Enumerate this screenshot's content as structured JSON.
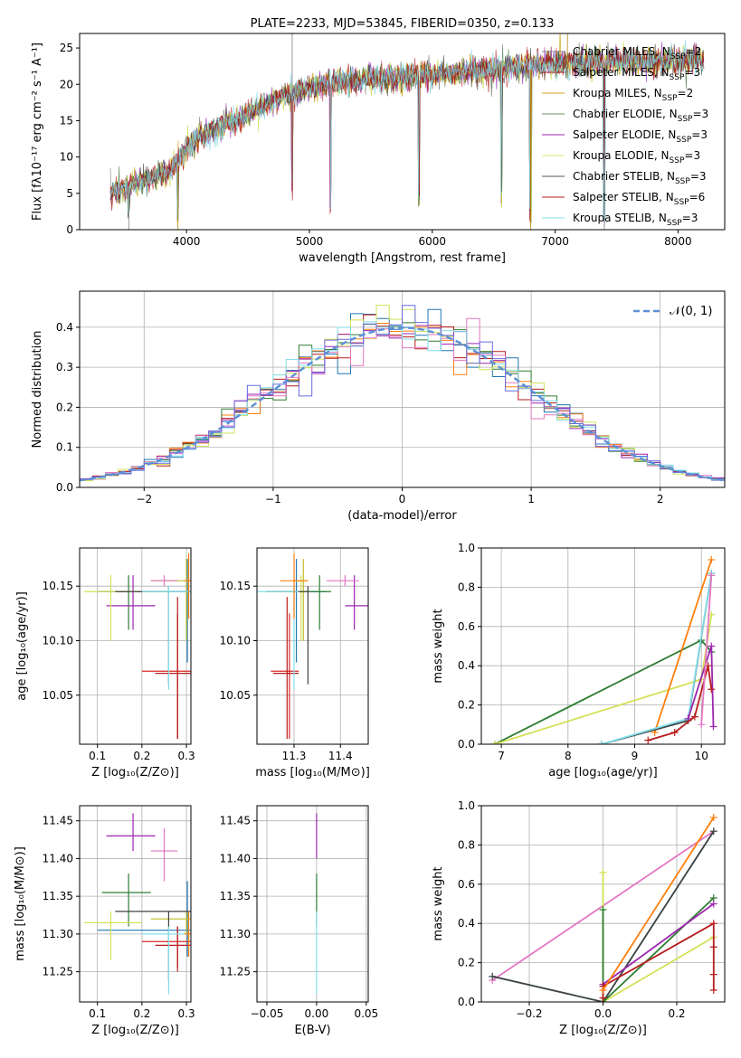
{
  "colors": {
    "chabrier_miles": "#1f77b4",
    "salpeter_miles": "#d62728",
    "kroupa_miles": "#bcbd22",
    "chabrier_elodie": "#2e7d32",
    "salpeter_elodie": "#9c27b0",
    "kroupa_elodie": "#d4e157",
    "chabrier_stelib": "#424242",
    "salpeter_stelib": "#b71c1c",
    "kroupa_stelib": "#80deea",
    "orange": "#ff7f0e",
    "pink": "#e377c2",
    "normal": "#5b8fd6"
  },
  "legend_entries": [
    {
      "label": "Chabrier MILES, N",
      "sub": "SSP",
      "suffix": "=2"
    },
    {
      "label": "Salpeter MILES, N",
      "sub": "SSP",
      "suffix": "=3"
    },
    {
      "label": "Kroupa MILES, N",
      "sub": "SSP",
      "suffix": "=2"
    },
    {
      "label": "Chabrier ELODIE, N",
      "sub": "SSP",
      "suffix": "=3"
    },
    {
      "label": "Salpeter ELODIE, N",
      "sub": "SSP",
      "suffix": "=3"
    },
    {
      "label": "Kroupa ELODIE, N",
      "sub": "SSP",
      "suffix": "=3"
    },
    {
      "label": "Chabrier STELIB, N",
      "sub": "SSP",
      "suffix": "=3"
    },
    {
      "label": "Salpeter STELIB, N",
      "sub": "SSP",
      "suffix": "=6"
    },
    {
      "label": "Kroupa STELIB, N",
      "sub": "SSP",
      "suffix": "=3"
    }
  ],
  "chart_data": [
    {
      "id": "spectrum",
      "type": "line",
      "title": "PLATE=2233, MJD=53845, FIBERID=0350, z=0.133",
      "xlabel": "wavelength [Angstrom, rest frame]",
      "ylabel": "Flux [fλ10⁻¹⁷ erg cm⁻² s⁻¹ A⁻¹]",
      "xlim": [
        3130,
        8380
      ],
      "ylim": [
        0,
        27
      ],
      "xticks": [
        4000,
        5000,
        6000,
        7000,
        8000
      ],
      "yticks": [
        0,
        5,
        10,
        15,
        20,
        25
      ],
      "continuum": [
        [
          3380,
          5.0
        ],
        [
          3500,
          5.8
        ],
        [
          3700,
          7.0
        ],
        [
          3850,
          8.0
        ],
        [
          3950,
          10.0
        ],
        [
          4050,
          12.0
        ],
        [
          4200,
          13.5
        ],
        [
          4400,
          15.0
        ],
        [
          4600,
          16.8
        ],
        [
          4800,
          18.5
        ],
        [
          5000,
          19.5
        ],
        [
          5200,
          20.2
        ],
        [
          5400,
          20.6
        ],
        [
          5600,
          20.8
        ],
        [
          5800,
          21.0
        ],
        [
          6000,
          21.3
        ],
        [
          6200,
          21.6
        ],
        [
          6400,
          22.0
        ],
        [
          6600,
          22.3
        ],
        [
          6800,
          22.6
        ],
        [
          7000,
          22.8
        ],
        [
          7200,
          22.9
        ],
        [
          7400,
          23.1
        ],
        [
          7600,
          23.2
        ],
        [
          7800,
          23.3
        ],
        [
          8000,
          23.4
        ],
        [
          8210,
          23.4
        ]
      ],
      "dips": [
        [
          3530,
          1.5
        ],
        [
          3930,
          0.5
        ],
        [
          4860,
          4
        ],
        [
          5170,
          2
        ],
        [
          5890,
          3
        ],
        [
          6563,
          3
        ],
        [
          6800,
          0.3
        ],
        [
          7400,
          0.3
        ]
      ]
    },
    {
      "id": "residuals",
      "type": "line",
      "title": "",
      "xlabel": "(data-model)/error",
      "ylabel": "Normed distribution",
      "xlim": [
        -2.5,
        2.5
      ],
      "ylim": [
        0,
        0.49
      ],
      "xticks": [
        -2,
        -1,
        0,
        1,
        2
      ],
      "yticks": [
        0.0,
        0.1,
        0.2,
        0.3,
        0.4
      ],
      "legend": "𝒩(0, 1)",
      "bin_width": 0.1
    },
    {
      "id": "age_vs_Z",
      "type": "scatter",
      "xlabel": "Z [log₁₀(Z/Z⊙)]",
      "ylabel": "age  [log₁₀(age/yr)]",
      "xlim": [
        0.06,
        0.31
      ],
      "ylim": [
        10.005,
        10.185
      ],
      "xticks": [
        0.1,
        0.2,
        0.3
      ],
      "yticks": [
        10.05,
        10.1,
        10.15
      ]
    },
    {
      "id": "age_vs_mass",
      "type": "scatter",
      "xlabel": "mass [log₁₀(M/M⊙)]",
      "xlim": [
        11.22,
        11.46
      ],
      "ylim": [
        10.005,
        10.185
      ],
      "xticks": [
        11.3,
        11.4
      ],
      "yticks": [
        10.05,
        10.1,
        10.15
      ]
    },
    {
      "id": "weight_vs_age",
      "type": "line",
      "xlabel": "age  [log₁₀(age/yr)]",
      "ylabel": "mass weight",
      "xlim": [
        6.7,
        10.35
      ],
      "ylim": [
        0,
        1.0
      ],
      "xticks": [
        7,
        8,
        9,
        10
      ],
      "yticks": [
        0.0,
        0.2,
        0.4,
        0.6,
        0.8,
        1.0
      ]
    },
    {
      "id": "mass_vs_Z",
      "type": "scatter",
      "xlabel": "Z [log₁₀(Z/Z⊙)]",
      "ylabel": "mass [log₁₀(M/M⊙)]",
      "xlim": [
        0.06,
        0.31
      ],
      "ylim": [
        11.21,
        11.47
      ],
      "xticks": [
        0.1,
        0.2,
        0.3
      ],
      "yticks": [
        11.25,
        11.3,
        11.35,
        11.4,
        11.45
      ]
    },
    {
      "id": "mass_vs_ebv",
      "type": "scatter",
      "xlabel": "E(B-V)",
      "xlim": [
        -0.06,
        0.052
      ],
      "ylim": [
        11.21,
        11.47
      ],
      "xticks": [
        -0.05,
        0.0,
        0.05
      ],
      "yticks": [
        11.25,
        11.3,
        11.35,
        11.4,
        11.45
      ]
    },
    {
      "id": "weight_vs_Z",
      "type": "line",
      "xlabel": "Z [log₁₀(Z/Z⊙)]",
      "ylabel": "mass weight",
      "xlim": [
        -0.33,
        0.33
      ],
      "ylim": [
        0,
        1.0
      ],
      "xticks": [
        -0.2,
        0.0,
        0.2
      ],
      "yticks": [
        0.0,
        0.2,
        0.4,
        0.6,
        0.8,
        1.0
      ]
    }
  ],
  "fit_points": [
    {
      "model": "chabrier_miles",
      "Z": 0.302,
      "Zlo": 0.1,
      "Zhi": 0.31,
      "age": 10.145,
      "agelo": 10.08,
      "agehi": 10.175,
      "mass": 11.305,
      "masslo": 11.27,
      "masshi": 11.37
    },
    {
      "model": "salpeter_miles",
      "Z": 0.28,
      "Zlo": 0.2,
      "Zhi": 0.31,
      "age": 10.072,
      "agelo": 10.01,
      "agehi": 10.125,
      "mass": 11.29,
      "masslo": 11.25,
      "masshi": 11.31
    },
    {
      "model": "kroupa_miles",
      "Z": 0.3,
      "Zlo": 0.22,
      "Zhi": 0.31,
      "age": 10.155,
      "agelo": 10.1,
      "agehi": 10.175,
      "mass": 11.32,
      "masslo": 11.3,
      "masshi": 11.33
    },
    {
      "model": "chabrier_elodie",
      "Z": 0.17,
      "Zlo": 0.11,
      "Zhi": 0.22,
      "age": 10.145,
      "agelo": 10.11,
      "agehi": 10.16,
      "mass": 11.355,
      "masslo": 11.31,
      "masshi": 11.38
    },
    {
      "model": "salpeter_elodie",
      "Z": 0.18,
      "Zlo": 0.12,
      "Zhi": 0.23,
      "age": 10.132,
      "agelo": 10.11,
      "agehi": 10.16,
      "mass": 11.43,
      "masslo": 11.41,
      "masshi": 11.46
    },
    {
      "model": "kroupa_elodie",
      "Z": 0.13,
      "Zlo": 0.07,
      "Zhi": 0.2,
      "age": 10.145,
      "agelo": 10.1,
      "agehi": 10.16,
      "mass": 11.315,
      "masslo": 11.265,
      "masshi": 11.33
    },
    {
      "model": "chabrier_stelib",
      "Z": 0.26,
      "Zlo": 0.14,
      "Zhi": 0.31,
      "age": 10.145,
      "agelo": 10.06,
      "agehi": 10.15,
      "mass": 11.33,
      "masslo": 11.24,
      "masshi": 11.33
    },
    {
      "model": "salpeter_stelib",
      "Z": 0.28,
      "Zlo": 0.23,
      "Zhi": 0.31,
      "age": 10.07,
      "agelo": 10.01,
      "agehi": 10.14,
      "mass": 11.285,
      "masslo": 11.255,
      "masshi": 11.31
    },
    {
      "model": "kroupa_stelib",
      "Z": 0.26,
      "Zlo": 0.2,
      "Zhi": 0.31,
      "age": 10.145,
      "agelo": 10.055,
      "agehi": 10.15,
      "mass": 11.3,
      "masslo": 11.22,
      "masshi": 11.31
    },
    {
      "model": "orange",
      "Z": 0.305,
      "Zlo": 0.295,
      "Zhi": 0.31,
      "age": 10.155,
      "agelo": 10.12,
      "agehi": 10.18,
      "mass": 11.3,
      "masslo": 11.27,
      "masshi": 11.33
    },
    {
      "model": "pink",
      "Z": 0.25,
      "Zlo": 0.22,
      "Zhi": 0.28,
      "age": 10.155,
      "agelo": 10.15,
      "agehi": 10.16,
      "mass": 11.41,
      "masslo": 11.37,
      "masshi": 11.44
    }
  ],
  "ebv_points": [
    {
      "model": "salpeter_elodie",
      "ebv": 0.0,
      "mass": 11.43,
      "masslo": 11.4,
      "masshi": 11.46
    },
    {
      "model": "chabrier_elodie",
      "ebv": 0.0,
      "mass": 11.355,
      "masslo": 11.31,
      "masshi": 11.38
    },
    {
      "model": "kroupa_stelib",
      "ebv": 0.0,
      "mass": 11.3,
      "masslo": 11.22,
      "masshi": 11.33
    }
  ],
  "weight_age_series": [
    {
      "model": "chabrier_elodie",
      "points": [
        [
          6.9,
          0.0
        ],
        [
          10.0,
          0.53
        ],
        [
          10.15,
          0.47
        ]
      ]
    },
    {
      "model": "kroupa_elodie",
      "points": [
        [
          6.9,
          0.0
        ],
        [
          10.0,
          0.33
        ],
        [
          10.15,
          0.66
        ]
      ]
    },
    {
      "model": "orange",
      "points": [
        [
          9.3,
          0.06
        ],
        [
          10.15,
          0.94
        ]
      ]
    },
    {
      "model": "chabrier_stelib",
      "points": [
        [
          8.5,
          0.0
        ],
        [
          9.8,
          0.12
        ],
        [
          10.15,
          0.87
        ]
      ]
    },
    {
      "model": "kroupa_stelib",
      "points": [
        [
          8.5,
          0.0
        ],
        [
          9.8,
          0.13
        ],
        [
          10.15,
          0.87
        ]
      ]
    },
    {
      "model": "salpeter_elodie",
      "points": [
        [
          9.8,
          0.13
        ],
        [
          10.15,
          0.5
        ],
        [
          10.18,
          0.09
        ]
      ]
    },
    {
      "model": "salpeter_stelib",
      "points": [
        [
          9.2,
          0.02
        ],
        [
          9.6,
          0.06
        ],
        [
          9.9,
          0.14
        ],
        [
          10.1,
          0.4
        ],
        [
          10.15,
          0.28
        ]
      ]
    },
    {
      "model": "pink",
      "points": [
        [
          10.0,
          0.1
        ],
        [
          10.15,
          0.86
        ]
      ]
    }
  ],
  "weight_Z_series": [
    {
      "model": "pink",
      "points": [
        [
          -0.3,
          0.11
        ],
        [
          0.3,
          0.87
        ]
      ]
    },
    {
      "model": "kroupa_stelib",
      "points": [
        [
          -0.3,
          0.13
        ],
        [
          0.0,
          0.0
        ],
        [
          0.3,
          0.87
        ]
      ]
    },
    {
      "model": "chabrier_stelib",
      "points": [
        [
          -0.3,
          0.13
        ],
        [
          0.0,
          0.0
        ],
        [
          0.3,
          0.87
        ]
      ]
    },
    {
      "model": "kroupa_elodie",
      "points": [
        [
          0.0,
          0.66
        ],
        [
          0.0,
          0.0
        ],
        [
          0.3,
          0.33
        ]
      ]
    },
    {
      "model": "chabrier_elodie",
      "points": [
        [
          0.0,
          0.47
        ],
        [
          0.0,
          0.0
        ],
        [
          0.3,
          0.53
        ]
      ]
    },
    {
      "model": "salpeter_elodie",
      "points": [
        [
          0.0,
          0.09
        ],
        [
          0.3,
          0.5
        ]
      ]
    },
    {
      "model": "salpeter_stelib",
      "points": [
        [
          0.0,
          0.02
        ],
        [
          0.0,
          0.08
        ],
        [
          0.3,
          0.4
        ],
        [
          0.3,
          0.28
        ],
        [
          0.3,
          0.14
        ],
        [
          0.3,
          0.06
        ]
      ]
    },
    {
      "model": "orange",
      "points": [
        [
          0.0,
          0.06
        ],
        [
          0.3,
          0.94
        ]
      ]
    }
  ]
}
